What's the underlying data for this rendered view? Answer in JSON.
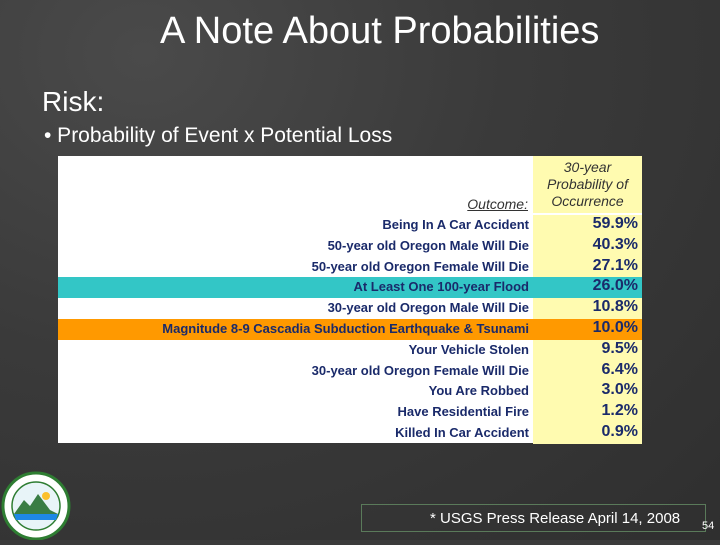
{
  "slide": {
    "title": "A Note About Probabilities",
    "subhead": "Risk:",
    "bullet": "• Probability of Event x Potential Loss",
    "footer": "* USGS Press Release April 14, 2008",
    "page_number": "54"
  },
  "table": {
    "column_header": "30-year Probability of Occurrence",
    "column_header_lines": [
      "30-year",
      "Probability of",
      "Occurrence"
    ],
    "outcome_header": "Outcome:",
    "rows": [
      {
        "outcome": "Being In A Car Accident",
        "probability": "59.9%"
      },
      {
        "outcome": "50-year old Oregon Male Will Die",
        "probability": "40.3%"
      },
      {
        "outcome": "50-year old Oregon Female Will Die",
        "probability": "27.1%"
      },
      {
        "outcome": "At Least One 100-year Flood",
        "probability": "26.0%"
      },
      {
        "outcome": "30-year old Oregon Male Will Die",
        "probability": "10.8%"
      },
      {
        "outcome": "Magnitude 8-9 Cascadia Subduction Earthquake & Tsunami",
        "probability": "10.0%"
      },
      {
        "outcome": "Your Vehicle Stolen",
        "probability": "9.5%"
      },
      {
        "outcome": "30-year old Oregon Female Will Die",
        "probability": "6.4%"
      },
      {
        "outcome": "You Are Robbed",
        "probability": "3.0%"
      },
      {
        "outcome": "Have Residential Fire",
        "probability": "1.2%"
      },
      {
        "outcome": "Killed In Car Accident",
        "probability": "0.9%"
      }
    ],
    "highlight_colors": {
      "flood": "#33c6c6",
      "earthquake": "#ff9900",
      "probability_column": "#fffbb0"
    }
  },
  "logo": {
    "icon": "oregon-seal-icon"
  }
}
